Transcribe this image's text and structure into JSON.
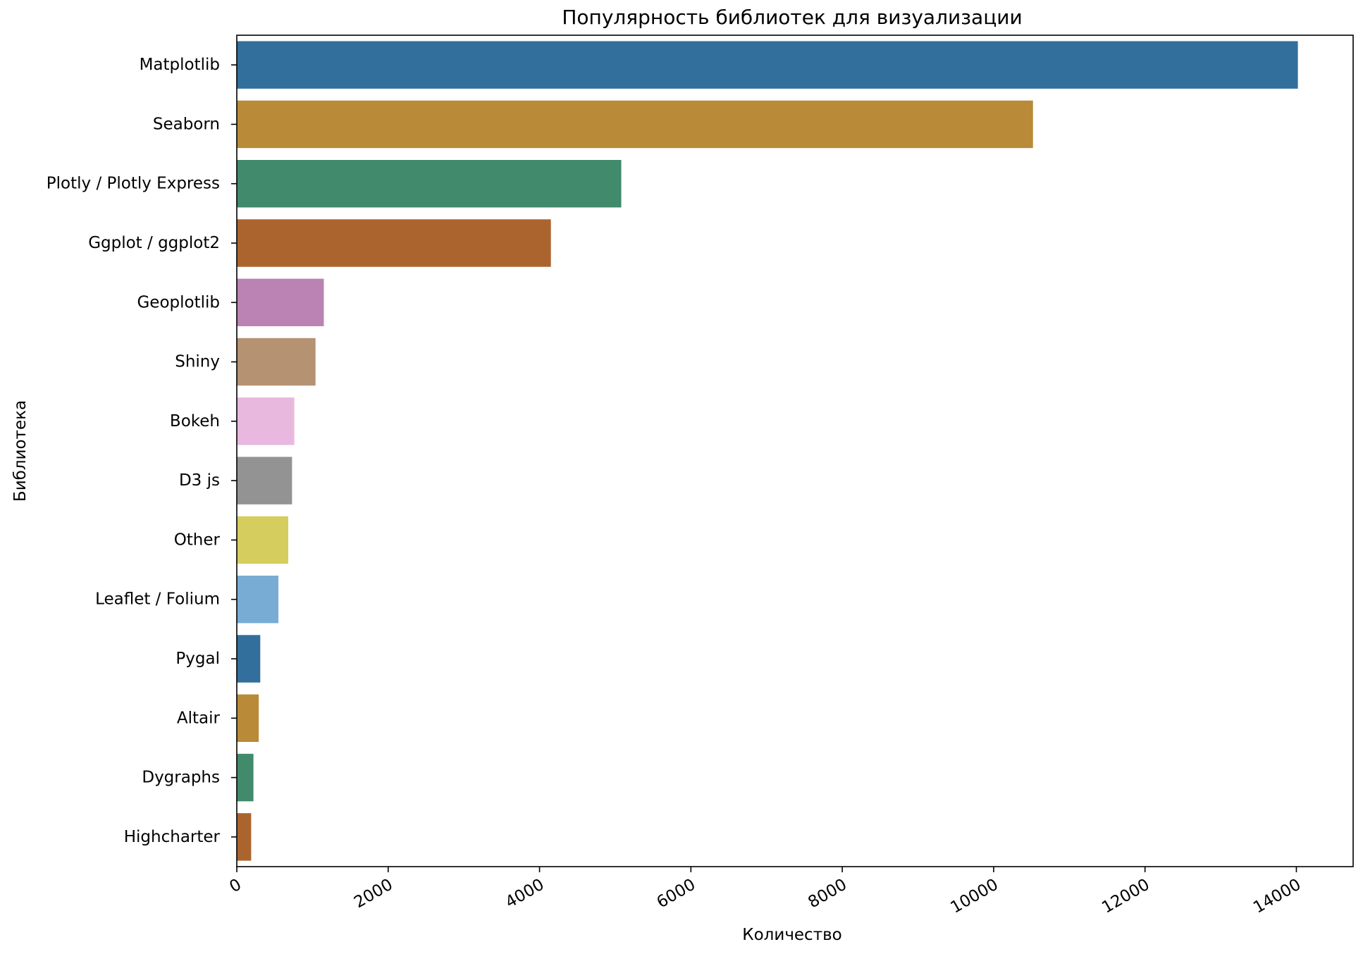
{
  "chart_data": {
    "type": "bar",
    "orientation": "horizontal",
    "title": "Популярность библиотек для визуализации",
    "xlabel": "Количество",
    "ylabel": "Библиотека",
    "xlim": [
      0,
      14750
    ],
    "xticks": [
      0,
      2000,
      4000,
      6000,
      8000,
      10000,
      12000,
      14000
    ],
    "xtick_labels": [
      "0",
      "2000",
      "4000",
      "6000",
      "8000",
      "10000",
      "12000",
      "14000"
    ],
    "grid": false,
    "legend": "none",
    "categories": [
      "Matplotlib",
      "Seaborn",
      "Plotly / Plotly Express",
      "Ggplot / ggplot2",
      "Geoplotlib",
      "Shiny",
      "Bokeh",
      "D3 js",
      "Other",
      "Leaflet / Folium",
      "Pygal",
      "Altair",
      "Dygraphs",
      "Highcharter"
    ],
    "values": [
      14020,
      10520,
      5080,
      4150,
      1150,
      1040,
      760,
      730,
      680,
      550,
      310,
      290,
      220,
      190
    ],
    "colors": [
      "#336f9c",
      "#b98a38",
      "#418a6c",
      "#ac642e",
      "#bb83b4",
      "#b59271",
      "#e9b8de",
      "#939393",
      "#d5ce5f",
      "#78acd5",
      "#336f9c",
      "#b98a38",
      "#418a6c",
      "#ac642e"
    ]
  }
}
